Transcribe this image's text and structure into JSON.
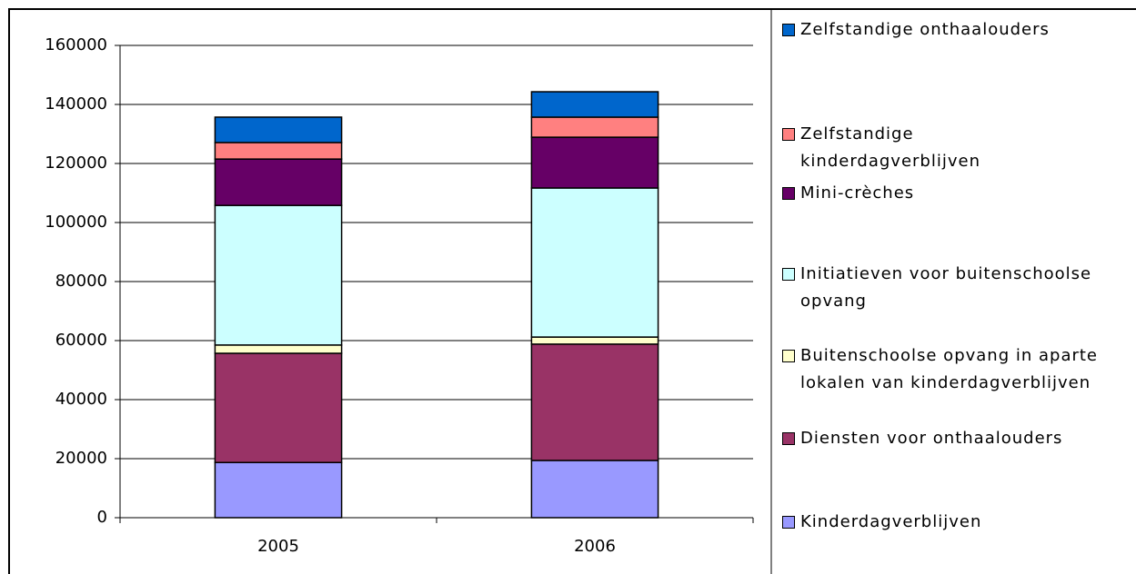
{
  "chart_data": {
    "type": "stacked_bar",
    "categories": [
      "2005",
      "2006"
    ],
    "series": [
      {
        "name": "Kinderdagverblijven",
        "color": "#9999ff",
        "values": [
          18700,
          19400
        ]
      },
      {
        "name": "Diensten voor onthaalouders",
        "color": "#993366",
        "values": [
          37000,
          39400
        ]
      },
      {
        "name": "Buitenschoolse opvang in aparte lokalen van kinderdagverblijven",
        "color": "#ffffcc",
        "values": [
          2800,
          2400
        ]
      },
      {
        "name": "Initiatieven voor buitenschoolse opvang",
        "color": "#ccffff",
        "values": [
          47300,
          50500
        ]
      },
      {
        "name": "Mini-crèches",
        "color": "#660066",
        "values": [
          15700,
          17200
        ]
      },
      {
        "name": "Zelfstandige kinderdagverblijven",
        "color": "#ff8080",
        "values": [
          5600,
          6800
        ]
      },
      {
        "name": "Zelfstandige onthaalouders",
        "color": "#0066cc",
        "values": [
          8600,
          8600
        ]
      }
    ],
    "ylim": [
      0,
      160000
    ],
    "yticks": [
      0,
      20000,
      40000,
      60000,
      80000,
      100000,
      120000,
      140000,
      160000
    ],
    "grid": true
  }
}
